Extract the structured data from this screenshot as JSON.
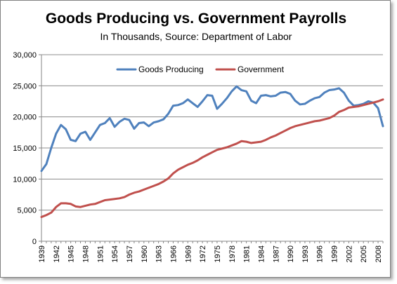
{
  "chart_data": {
    "type": "line",
    "title": "Goods Producing vs. Government Payrolls",
    "subtitle": "In Thousands,  Source: Department of Labor",
    "xlabel": "",
    "ylabel": "",
    "ylim": [
      0,
      30000
    ],
    "y_ticks": [
      "0",
      "5,000",
      "10,000",
      "15,000",
      "20,000",
      "25,000",
      "30,000"
    ],
    "x_tick_labels": [
      "1939",
      "1942",
      "1945",
      "1948",
      "1951",
      "1954",
      "1957",
      "1960",
      "1963",
      "1966",
      "1969",
      "1972",
      "1975",
      "1978",
      "1981",
      "1984",
      "1987",
      "1990",
      "1993",
      "1996",
      "1999",
      "2002",
      "2005",
      "2008"
    ],
    "grid": "horizontal",
    "legend_position": "top-center",
    "x": [
      1939,
      1940,
      1941,
      1942,
      1943,
      1944,
      1945,
      1946,
      1947,
      1948,
      1949,
      1950,
      1951,
      1952,
      1953,
      1954,
      1955,
      1956,
      1957,
      1958,
      1959,
      1960,
      1961,
      1962,
      1963,
      1964,
      1965,
      1966,
      1967,
      1968,
      1969,
      1970,
      1971,
      1972,
      1973,
      1974,
      1975,
      1976,
      1977,
      1978,
      1979,
      1980,
      1981,
      1982,
      1983,
      1984,
      1985,
      1986,
      1987,
      1988,
      1989,
      1990,
      1991,
      1992,
      1993,
      1994,
      1995,
      1996,
      1997,
      1998,
      1999,
      2000,
      2001,
      2002,
      2003,
      2004,
      2005,
      2006,
      2007,
      2008,
      2009
    ],
    "series": [
      {
        "name": "Goods Producing",
        "color": "#4F81BD",
        "values": [
          11300,
          12400,
          15000,
          17300,
          18700,
          18000,
          16300,
          16100,
          17300,
          17600,
          16300,
          17500,
          18700,
          19000,
          19800,
          18400,
          19200,
          19700,
          19500,
          18100,
          19000,
          19100,
          18500,
          19100,
          19300,
          19600,
          20500,
          21800,
          21900,
          22200,
          22800,
          22200,
          21600,
          22500,
          23500,
          23400,
          21300,
          22100,
          23000,
          24100,
          24900,
          24300,
          24100,
          22600,
          22200,
          23400,
          23500,
          23300,
          23400,
          23900,
          24000,
          23700,
          22600,
          22000,
          22100,
          22600,
          23000,
          23200,
          23900,
          24300,
          24400,
          24600,
          23900,
          22600,
          21800,
          21900,
          22100,
          22500,
          22300,
          21400,
          18500
        ]
      },
      {
        "name": "Government",
        "color": "#C0504D",
        "values": [
          3900,
          4200,
          4600,
          5500,
          6100,
          6100,
          6000,
          5600,
          5500,
          5700,
          5900,
          6000,
          6300,
          6600,
          6700,
          6800,
          6900,
          7100,
          7500,
          7800,
          8000,
          8300,
          8600,
          8900,
          9200,
          9600,
          10100,
          10900,
          11500,
          11900,
          12300,
          12600,
          13000,
          13500,
          13900,
          14300,
          14700,
          14900,
          15100,
          15400,
          15700,
          16100,
          16000,
          15800,
          15900,
          16000,
          16300,
          16700,
          17000,
          17400,
          17800,
          18200,
          18500,
          18700,
          18900,
          19100,
          19300,
          19400,
          19600,
          19800,
          20200,
          20800,
          21100,
          21500,
          21600,
          21700,
          21900,
          22100,
          22300,
          22500,
          22800
        ]
      }
    ]
  }
}
